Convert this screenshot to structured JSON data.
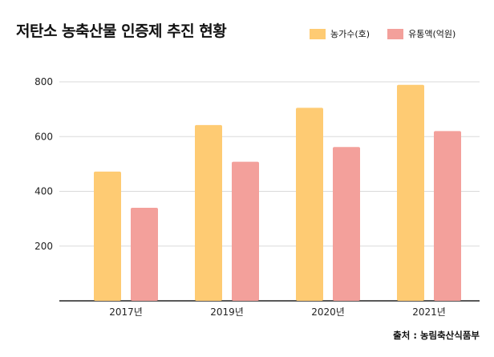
{
  "title": "저탄소 농축산물 인증제 추진 현황",
  "source": "출처 : 농림축산식품부",
  "colors": {
    "series1": "#FECB73",
    "series2": "#F3A09B",
    "grid": "#DADADA",
    "axis": "#222222"
  },
  "chart_data": {
    "type": "bar",
    "categories": [
      "2017년",
      "2019년",
      "2020년",
      "2021년"
    ],
    "series": [
      {
        "name": "농가수(호)",
        "values": [
          472,
          642,
          705,
          789
        ]
      },
      {
        "name": "유통액(억원)",
        "values": [
          340,
          508,
          562,
          620
        ]
      }
    ],
    "y_ticks": [
      "200",
      "400",
      "600",
      "800"
    ],
    "ylim": [
      0,
      800
    ],
    "grid": true,
    "legend_position": "top-right"
  }
}
